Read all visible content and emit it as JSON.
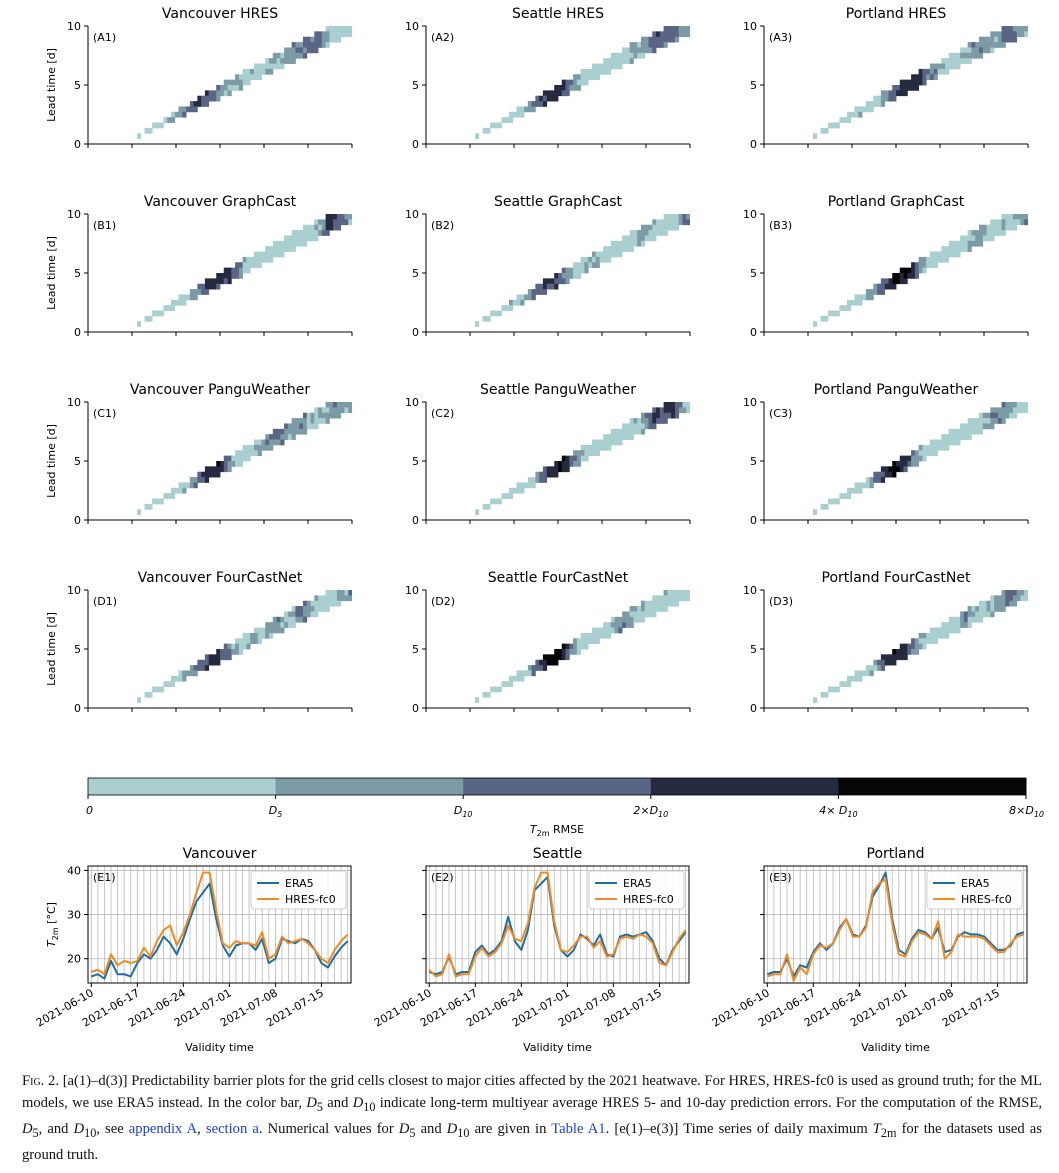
{
  "figure": {
    "rows": [
      {
        "row": "A",
        "model": "HRES",
        "panels": [
          {
            "tag": "(A1)",
            "title": "Vancouver HRES",
            "city": "Vancouver",
            "hot": 0.42
          },
          {
            "tag": "(A2)",
            "title": "Seattle HRES",
            "city": "Seattle",
            "hot": 0.47
          },
          {
            "tag": "(A3)",
            "title": "Portland HRES",
            "city": "Portland",
            "hot": 0.55
          }
        ]
      },
      {
        "row": "B",
        "model": "GraphCast",
        "panels": [
          {
            "tag": "(B1)",
            "title": "Vancouver GraphCast",
            "city": "Vancouver",
            "hot": 0.47
          },
          {
            "tag": "(B2)",
            "title": "Seattle GraphCast",
            "city": "Seattle",
            "hot": 0.46
          },
          {
            "tag": "(B3)",
            "title": "Portland GraphCast",
            "city": "Portland",
            "hot": 0.52
          }
        ]
      },
      {
        "row": "C",
        "model": "PanguWeather",
        "panels": [
          {
            "tag": "(C1)",
            "title": "Vancouver PanguWeather",
            "city": "Vancouver",
            "hot": 0.46
          },
          {
            "tag": "(C2)",
            "title": "Seattle PanguWeather",
            "city": "Seattle",
            "hot": 0.5
          },
          {
            "tag": "(C3)",
            "title": "Portland PanguWeather",
            "city": "Portland",
            "hot": 0.5
          }
        ]
      },
      {
        "row": "D",
        "model": "FourCastNet",
        "panels": [
          {
            "tag": "(D1)",
            "title": "Vancouver FourCastNet",
            "city": "Vancouver",
            "hot": 0.47
          },
          {
            "tag": "(D2)",
            "title": "Seattle FourCastNet",
            "city": "Seattle",
            "hot": 0.48
          },
          {
            "tag": "(D3)",
            "title": "Portland FourCastNet",
            "city": "Portland",
            "hot": 0.5
          }
        ]
      }
    ],
    "heatmap_ylabel": "Lead time [d]",
    "heatmap_yticks": [
      "0",
      "5",
      "10"
    ],
    "colorbar": {
      "xlabel": "T2m RMSE",
      "levels": [
        "0",
        "D5",
        "D10",
        "2×D10",
        "4× D10",
        "8×D10"
      ],
      "colors": [
        "#a9cfd0",
        "#7d9ba6",
        "#5a6484",
        "#262a40",
        "#060608"
      ]
    },
    "timeseries": {
      "ylabel": "T2m [°C]",
      "xlabel": "Validity time",
      "yticks": [
        20,
        30,
        40
      ],
      "ylim": [
        14.5,
        41
      ],
      "xticks": [
        "2021-06-10",
        "2021-06-17",
        "2021-06-24",
        "2021-07-01",
        "2021-07-08",
        "2021-07-15"
      ],
      "legend": [
        "ERA5",
        "HRES-fc0"
      ],
      "colors": {
        "ERA5": "#1f6fa3",
        "HRES-fc0": "#f08a24"
      }
    }
  },
  "chart_data": [
    {
      "type": "line",
      "panel": "(E1)",
      "title": "Vancouver",
      "xlabel": "Validity time",
      "ylabel": "T2m [°C]",
      "x_start": "2021-06-10",
      "x_step_days": 1,
      "ylim": [
        14.5,
        41
      ],
      "grid": true,
      "legend": "top-right",
      "series": [
        {
          "name": "ERA5",
          "values": [
            16,
            16.5,
            15.5,
            19.5,
            16.5,
            16.5,
            16,
            19,
            21,
            20,
            22,
            25,
            23.5,
            21,
            24.5,
            29,
            33,
            35,
            37,
            29,
            23,
            20.5,
            23,
            23.5,
            23.5,
            22,
            24.5,
            19,
            20,
            24.5,
            24,
            23.5,
            24.5,
            24,
            22,
            19,
            18,
            20.5,
            22.5,
            24
          ]
        },
        {
          "name": "HRES-fc0",
          "values": [
            17,
            17.5,
            16.5,
            21,
            18.5,
            19.5,
            19,
            19.5,
            22.5,
            20.5,
            24,
            26.5,
            27.5,
            23,
            26,
            30,
            35,
            39.5,
            39.5,
            31,
            23.5,
            22.5,
            24,
            23.5,
            23.5,
            23,
            26,
            20,
            21,
            25,
            23.5,
            24,
            24.5,
            23.5,
            22,
            20,
            19,
            22,
            24,
            25.5
          ]
        }
      ]
    },
    {
      "type": "line",
      "panel": "(E2)",
      "title": "Seattle",
      "xlabel": "Validity time",
      "ylabel": "T2m [°C]",
      "x_start": "2021-06-10",
      "x_step_days": 1,
      "ylim": [
        14.5,
        41
      ],
      "grid": true,
      "legend": "top-right",
      "series": [
        {
          "name": "ERA5",
          "values": [
            17,
            16.5,
            17,
            20.5,
            16.5,
            17,
            17,
            21.5,
            23,
            21,
            22,
            24,
            29.5,
            24,
            22,
            26.5,
            35.5,
            37,
            38.5,
            27.5,
            22,
            20.5,
            22,
            25.5,
            24.5,
            23,
            25.5,
            21,
            20.5,
            25,
            25.5,
            25,
            25.5,
            26,
            24,
            20,
            18.5,
            22,
            24,
            26
          ]
        },
        {
          "name": "HRES-fc0",
          "values": [
            17.5,
            16,
            16.5,
            21,
            16,
            16.5,
            16.5,
            20.5,
            22.5,
            20.5,
            21.5,
            23.5,
            27.5,
            24.5,
            24,
            28,
            36,
            39.5,
            39.5,
            28.5,
            22,
            21.5,
            23,
            25,
            25,
            22.5,
            24,
            20.5,
            21,
            24.5,
            25,
            24.5,
            25.5,
            25,
            23.5,
            19,
            18.5,
            21.5,
            24.5,
            26.5
          ]
        }
      ]
    },
    {
      "type": "line",
      "panel": "(E3)",
      "title": "Portland",
      "xlabel": "Validity time",
      "ylabel": "T2m [°C]",
      "x_start": "2021-06-10",
      "x_step_days": 1,
      "ylim": [
        14.5,
        41
      ],
      "grid": true,
      "legend": "top-right",
      "series": [
        {
          "name": "ERA5",
          "values": [
            16.5,
            17,
            17,
            20,
            16,
            18.5,
            18,
            21.5,
            23.5,
            22,
            23.5,
            27,
            29,
            25.5,
            25,
            27.5,
            34,
            36.5,
            39.5,
            29,
            22,
            21,
            24.5,
            26.5,
            26,
            24.5,
            27,
            21.5,
            22,
            25,
            26,
            25.5,
            25.5,
            25,
            23.5,
            22,
            22,
            23,
            25.5,
            26
          ]
        },
        {
          "name": "HRES-fc0",
          "values": [
            16,
            16.5,
            16.5,
            21,
            15,
            18,
            16.5,
            21,
            23,
            22.5,
            23.5,
            26.5,
            29,
            25,
            25,
            27,
            35,
            37,
            38,
            28,
            21,
            20.5,
            24,
            26,
            25.5,
            24.5,
            28.5,
            20,
            21.5,
            25.5,
            25,
            25,
            25,
            24.5,
            23,
            21.5,
            21.5,
            23.5,
            25,
            25.5
          ]
        }
      ]
    }
  ],
  "caption": {
    "fig": "Fig. 2.",
    "text_1": " [a(1)–d(3)] Predictability barrier plots for the grid cells closest to major cities affected by the 2021 heatwave. For HRES, HRES-fc0 is used as ground truth; for the ML models, we use ERA5 instead. In the color bar, ",
    "text_2": " indicate long-term multiyear average HRES 5- and 10-day prediction errors. For the computation of the RMSE, ",
    "text_3": ", see ",
    "link_appendix": "appendix A",
    "link_section": "section a",
    "text_4": ". Numerical values for ",
    "link_table": "Table A1",
    "text_5": ". [e(1)–e(3)] Time series of daily maximum ",
    "text_6": " for the datasets used as ground truth."
  }
}
